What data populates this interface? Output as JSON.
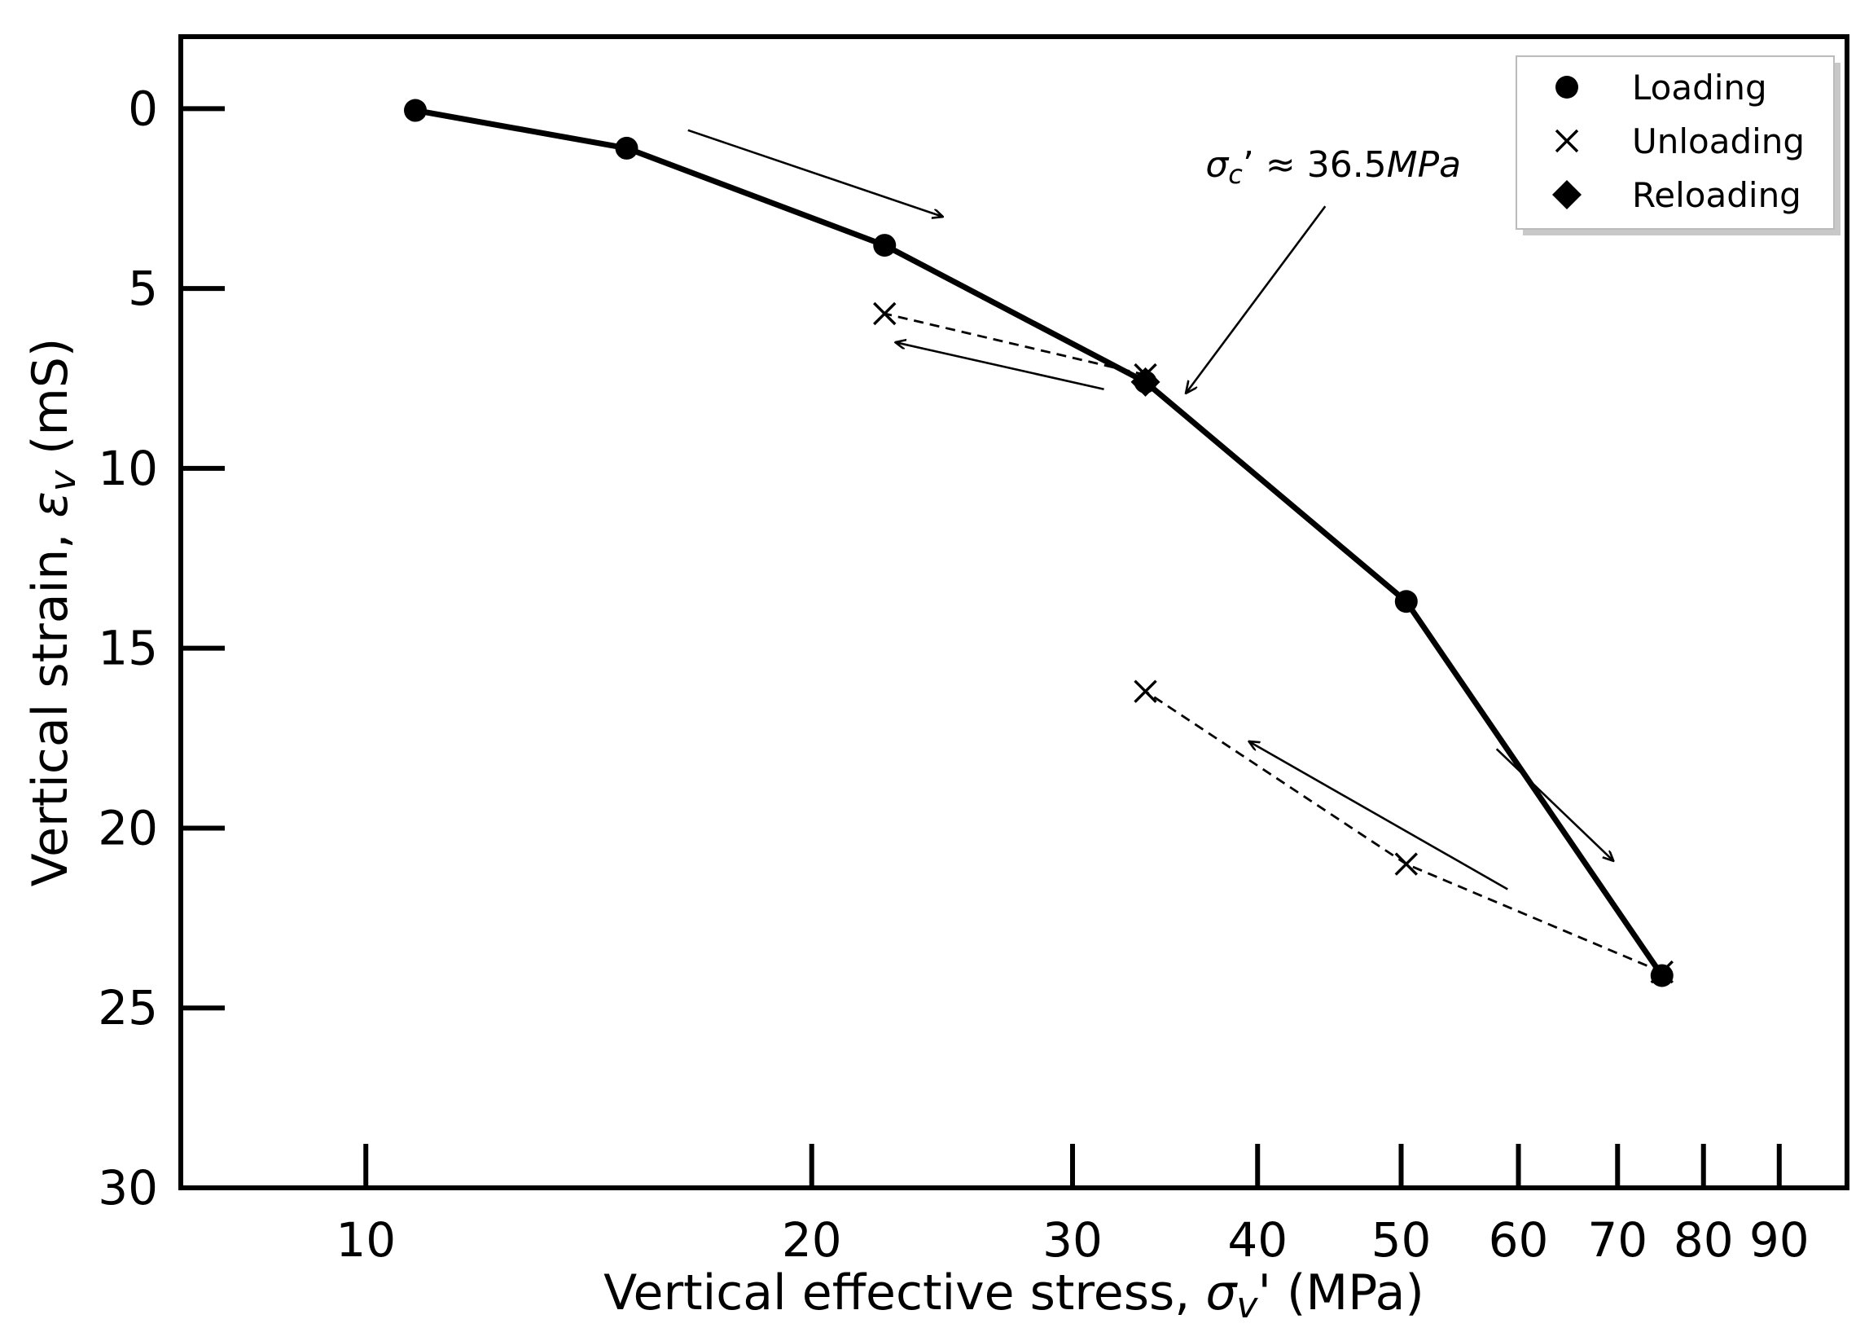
{
  "chart_data": {
    "type": "line",
    "title": "",
    "xlabel": {
      "prefix": "Vertical effective stress, ",
      "symbol": "σ",
      "subscript": "v",
      "suffix": "' (MPa)"
    },
    "ylabel": {
      "prefix": "Vertical strain, ",
      "symbol": "ε",
      "subscript": "v",
      "suffix": " (mS)"
    },
    "xscale": "log",
    "xlim": [
      7.5,
      100
    ],
    "ylim": [
      30,
      -2
    ],
    "y_inverted": true,
    "grid": false,
    "x_ticks": [
      10,
      20,
      30,
      40,
      50,
      60,
      70,
      80,
      90
    ],
    "x_tick_labels": [
      "10",
      "20",
      "30",
      "40",
      "50",
      "60",
      "70",
      "80",
      "90"
    ],
    "y_ticks": [
      0,
      5,
      10,
      15,
      20,
      25,
      30
    ],
    "y_tick_labels": [
      "0",
      "5",
      "10",
      "15",
      "20",
      "25",
      "30"
    ],
    "legend_position": "top-right",
    "legend": [
      {
        "label": "Loading",
        "marker": "circle"
      },
      {
        "label": "Unloading",
        "marker": "x"
      },
      {
        "label": "Reloading",
        "marker": "diamond"
      }
    ],
    "series": [
      {
        "label": "Loading",
        "marker": "circle",
        "line": "solid",
        "points": [
          [
            10.8,
            0.05
          ],
          [
            15.0,
            1.1
          ],
          [
            22.4,
            3.8
          ],
          [
            33.6,
            7.6
          ],
          [
            50.4,
            13.7
          ],
          [
            75.0,
            24.1
          ]
        ]
      },
      {
        "label": "Unloading",
        "marker": "x",
        "line": "dashed",
        "points": [
          [
            33.6,
            7.4
          ],
          [
            22.4,
            5.7
          ]
        ]
      },
      {
        "label": "Unloading",
        "marker": "x",
        "line": "dashed",
        "points": [
          [
            75.0,
            24.0
          ],
          [
            50.4,
            21.0
          ],
          [
            33.6,
            16.2
          ]
        ]
      },
      {
        "label": "Reloading",
        "marker": "diamond",
        "line": "solid",
        "points": [
          [
            33.6,
            7.6
          ]
        ]
      }
    ],
    "annotations": [
      {
        "text": {
          "symbol": "σ",
          "subscript": "c",
          "rest": "’ ≈ 36.5",
          "unit": "MPa"
        },
        "value": 36.5,
        "target": [
          35.8,
          7.9
        ],
        "text_anchor": [
          45.0,
          1.9
        ]
      }
    ],
    "direction_arrows": [
      {
        "from": [
          16.5,
          0.6
        ],
        "to": [
          24.5,
          3.0
        ]
      },
      {
        "from": [
          31.5,
          7.8
        ],
        "to": [
          22.8,
          6.5
        ]
      },
      {
        "from": [
          58.0,
          17.8
        ],
        "to": [
          69.5,
          20.9
        ]
      },
      {
        "from": [
          59.0,
          21.7
        ],
        "to": [
          39.5,
          17.6
        ]
      }
    ]
  }
}
